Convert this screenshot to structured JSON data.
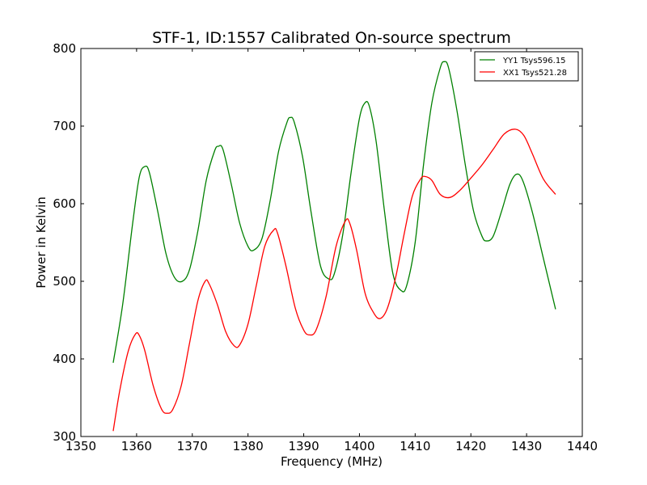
{
  "chart_data": {
    "type": "line",
    "title": "STF-1, ID:1557 Calibrated On-source spectrum",
    "xlabel": "Frequency (MHz)",
    "ylabel": "Power in Kelvin",
    "xlim": [
      1350,
      1440
    ],
    "ylim": [
      300,
      800
    ],
    "xticks": [
      "1350",
      "1360",
      "1370",
      "1380",
      "1390",
      "1400",
      "1410",
      "1420",
      "1430",
      "1440"
    ],
    "yticks": [
      "300",
      "400",
      "500",
      "600",
      "700",
      "800"
    ],
    "grid": false,
    "legend_position": "top-right",
    "series": [
      {
        "name": "YY1 Tsys596.15",
        "color": "#008000",
        "points": [
          [
            1355.8,
            395
          ],
          [
            1357.5,
            470
          ],
          [
            1359.3,
            575
          ],
          [
            1360.5,
            635
          ],
          [
            1361.5,
            648
          ],
          [
            1362.3,
            640
          ],
          [
            1363.8,
            590
          ],
          [
            1365.3,
            535
          ],
          [
            1366.8,
            505
          ],
          [
            1368.2,
            500
          ],
          [
            1369.5,
            515
          ],
          [
            1371.0,
            565
          ],
          [
            1372.5,
            630
          ],
          [
            1374.0,
            668
          ],
          [
            1374.7,
            674
          ],
          [
            1375.5,
            670
          ],
          [
            1377.0,
            625
          ],
          [
            1378.5,
            575
          ],
          [
            1380.0,
            545
          ],
          [
            1381.0,
            540
          ],
          [
            1382.5,
            555
          ],
          [
            1384.0,
            605
          ],
          [
            1385.5,
            668
          ],
          [
            1387.0,
            705
          ],
          [
            1387.6,
            711
          ],
          [
            1388.3,
            705
          ],
          [
            1389.8,
            660
          ],
          [
            1391.3,
            590
          ],
          [
            1393.0,
            520
          ],
          [
            1394.5,
            503
          ],
          [
            1395.5,
            510
          ],
          [
            1397.0,
            560
          ],
          [
            1398.5,
            640
          ],
          [
            1400.0,
            710
          ],
          [
            1401.0,
            730
          ],
          [
            1401.8,
            725
          ],
          [
            1403.0,
            680
          ],
          [
            1404.5,
            590
          ],
          [
            1406.0,
            510
          ],
          [
            1407.5,
            488
          ],
          [
            1408.5,
            495
          ],
          [
            1410.0,
            550
          ],
          [
            1411.5,
            650
          ],
          [
            1413.0,
            730
          ],
          [
            1414.5,
            775
          ],
          [
            1415.2,
            783
          ],
          [
            1416.0,
            775
          ],
          [
            1417.5,
            720
          ],
          [
            1419.0,
            650
          ],
          [
            1420.5,
            590
          ],
          [
            1422.0,
            558
          ],
          [
            1422.8,
            552
          ],
          [
            1424.0,
            558
          ],
          [
            1425.5,
            590
          ],
          [
            1427.0,
            625
          ],
          [
            1428.2,
            638
          ],
          [
            1429.3,
            630
          ],
          [
            1431.0,
            590
          ],
          [
            1433.0,
            530
          ],
          [
            1435.2,
            464
          ]
        ]
      },
      {
        "name": "XX1 Tsys521.28",
        "color": "#ff0000",
        "points": [
          [
            1355.8,
            307
          ],
          [
            1357.0,
            360
          ],
          [
            1358.5,
            410
          ],
          [
            1359.8,
            432
          ],
          [
            1360.5,
            430
          ],
          [
            1361.5,
            410
          ],
          [
            1363.0,
            365
          ],
          [
            1364.5,
            335
          ],
          [
            1365.5,
            330
          ],
          [
            1366.5,
            335
          ],
          [
            1368.0,
            365
          ],
          [
            1369.5,
            420
          ],
          [
            1371.0,
            475
          ],
          [
            1372.3,
            500
          ],
          [
            1373.0,
            497
          ],
          [
            1374.5,
            470
          ],
          [
            1376.0,
            435
          ],
          [
            1377.5,
            417
          ],
          [
            1378.5,
            418
          ],
          [
            1380.0,
            445
          ],
          [
            1381.5,
            495
          ],
          [
            1383.0,
            545
          ],
          [
            1384.6,
            566
          ],
          [
            1385.3,
            562
          ],
          [
            1386.8,
            520
          ],
          [
            1388.5,
            465
          ],
          [
            1390.0,
            437
          ],
          [
            1391.0,
            431
          ],
          [
            1392.2,
            437
          ],
          [
            1394.0,
            480
          ],
          [
            1395.8,
            545
          ],
          [
            1397.5,
            578
          ],
          [
            1398.3,
            574
          ],
          [
            1399.5,
            540
          ],
          [
            1401.0,
            485
          ],
          [
            1402.5,
            460
          ],
          [
            1403.7,
            452
          ],
          [
            1405.0,
            465
          ],
          [
            1406.5,
            505
          ],
          [
            1408.0,
            560
          ],
          [
            1409.5,
            610
          ],
          [
            1411.0,
            632
          ],
          [
            1411.8,
            635
          ],
          [
            1413.0,
            630
          ],
          [
            1414.5,
            612
          ],
          [
            1416.2,
            608
          ],
          [
            1418.0,
            617
          ],
          [
            1420.0,
            633
          ],
          [
            1422.0,
            650
          ],
          [
            1424.0,
            670
          ],
          [
            1426.0,
            690
          ],
          [
            1428.0,
            696
          ],
          [
            1429.5,
            688
          ],
          [
            1431.0,
            665
          ],
          [
            1433.0,
            632
          ],
          [
            1435.2,
            612
          ]
        ]
      }
    ]
  }
}
